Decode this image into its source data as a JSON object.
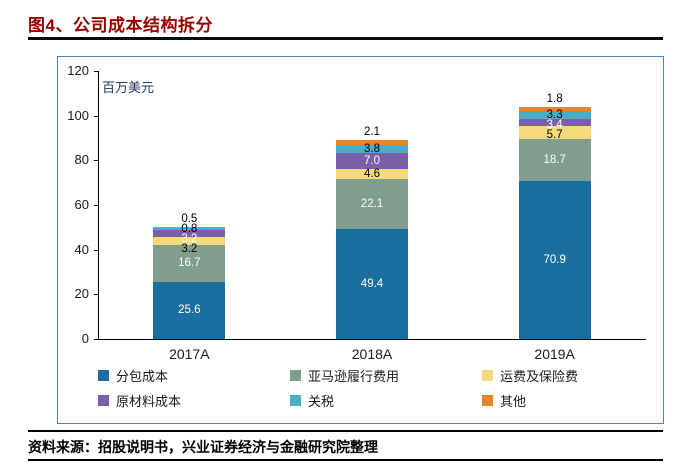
{
  "figure": {
    "title": "图4、公司成本结构拆分",
    "source": "资料来源：招股说明书，兴业证券经济与金融研究院整理"
  },
  "colors": {
    "title_text": "#990000",
    "frame_border": "#4f81bd",
    "axis": "#000000",
    "rule": "#000000"
  },
  "chart_data": {
    "type": "bar",
    "stacked": true,
    "title": "图4、公司成本结构拆分",
    "unit_label": "百万美元",
    "categories": [
      "2017A",
      "2018A",
      "2019A"
    ],
    "series": [
      {
        "name": "分包成本",
        "color": "#1b6fa0",
        "label_color": "#ffffff",
        "values": [
          25.6,
          49.4,
          70.9
        ]
      },
      {
        "name": "亚马逊履行费用",
        "color": "#7f9e8e",
        "label_color": "#ffffff",
        "values": [
          16.7,
          22.1,
          18.7
        ]
      },
      {
        "name": "运费及保险费",
        "color": "#f5da7c",
        "label_color": "#000000",
        "values": [
          3.2,
          4.6,
          5.7
        ]
      },
      {
        "name": "原材料成本",
        "color": "#7a5ea8",
        "label_color": "#ffffff",
        "values": [
          3.2,
          7.0,
          3.4
        ]
      },
      {
        "name": "关税",
        "color": "#4bacc6",
        "label_color": "#000000",
        "values": [
          0.8,
          3.8,
          3.3
        ]
      },
      {
        "name": "其他",
        "color": "#e8842b",
        "label_color": "#000000",
        "values": [
          0.5,
          2.1,
          1.8
        ]
      }
    ],
    "ylim": [
      0,
      120
    ],
    "yticks": [
      0,
      20,
      40,
      60,
      80,
      100,
      120
    ],
    "grid": false,
    "legend_position": "bottom-inside"
  }
}
